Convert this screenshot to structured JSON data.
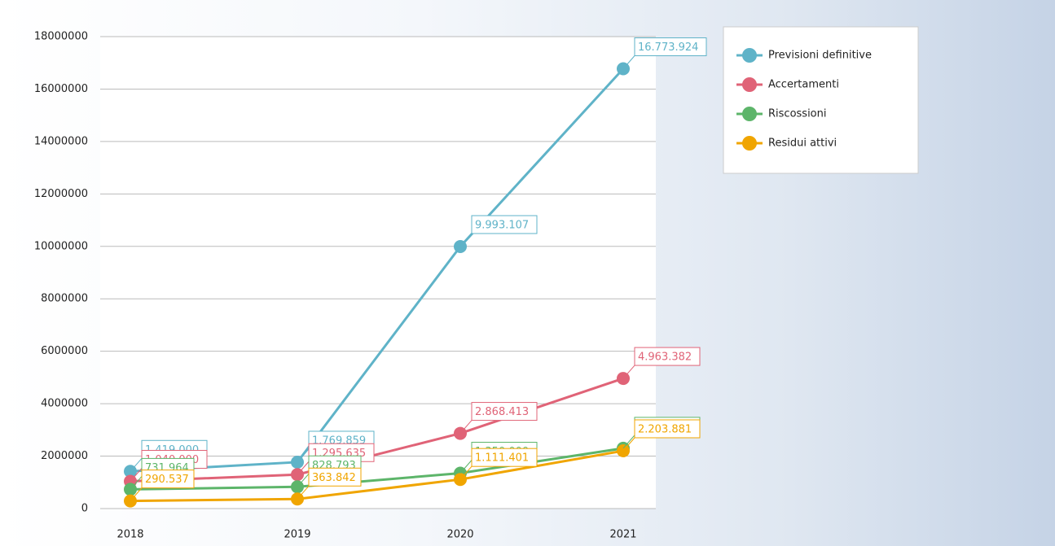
{
  "chart_data": {
    "type": "line",
    "categories": [
      "2018",
      "2019",
      "2020",
      "2021"
    ],
    "ylim": [
      0,
      18000000
    ],
    "yticks": [
      0,
      2000000,
      4000000,
      6000000,
      8000000,
      10000000,
      12000000,
      14000000,
      16000000,
      18000000
    ],
    "grid": true,
    "legend": "right",
    "series": [
      {
        "name": "Previsioni definitive",
        "color": "#5fb3c8",
        "values": [
          1419000,
          1769859,
          9993107,
          16773924
        ],
        "value_labels": [
          "1.419.000",
          "1.769.859",
          "9.993.107",
          "16.773.924"
        ]
      },
      {
        "name": "Accertamenti",
        "color": "#e06377",
        "values": [
          1040000,
          1295635,
          2868413,
          4963382
        ],
        "value_labels": [
          "1.040.000",
          "1.295.635",
          "2.868.413",
          "4.963.382"
        ]
      },
      {
        "name": "Riscossioni",
        "color": "#5db56a",
        "values": [
          731964,
          828793,
          1350000,
          2300000
        ],
        "value_labels": [
          "731.964",
          "828.793",
          "1.350.000",
          "2.300.000"
        ]
      },
      {
        "name": "Residui attivi",
        "color": "#f0a500",
        "values": [
          290537,
          363842,
          1111401,
          2203881
        ],
        "value_labels": [
          "290.537",
          "363.842",
          "1.111.401",
          "2.203.881"
        ]
      }
    ]
  }
}
